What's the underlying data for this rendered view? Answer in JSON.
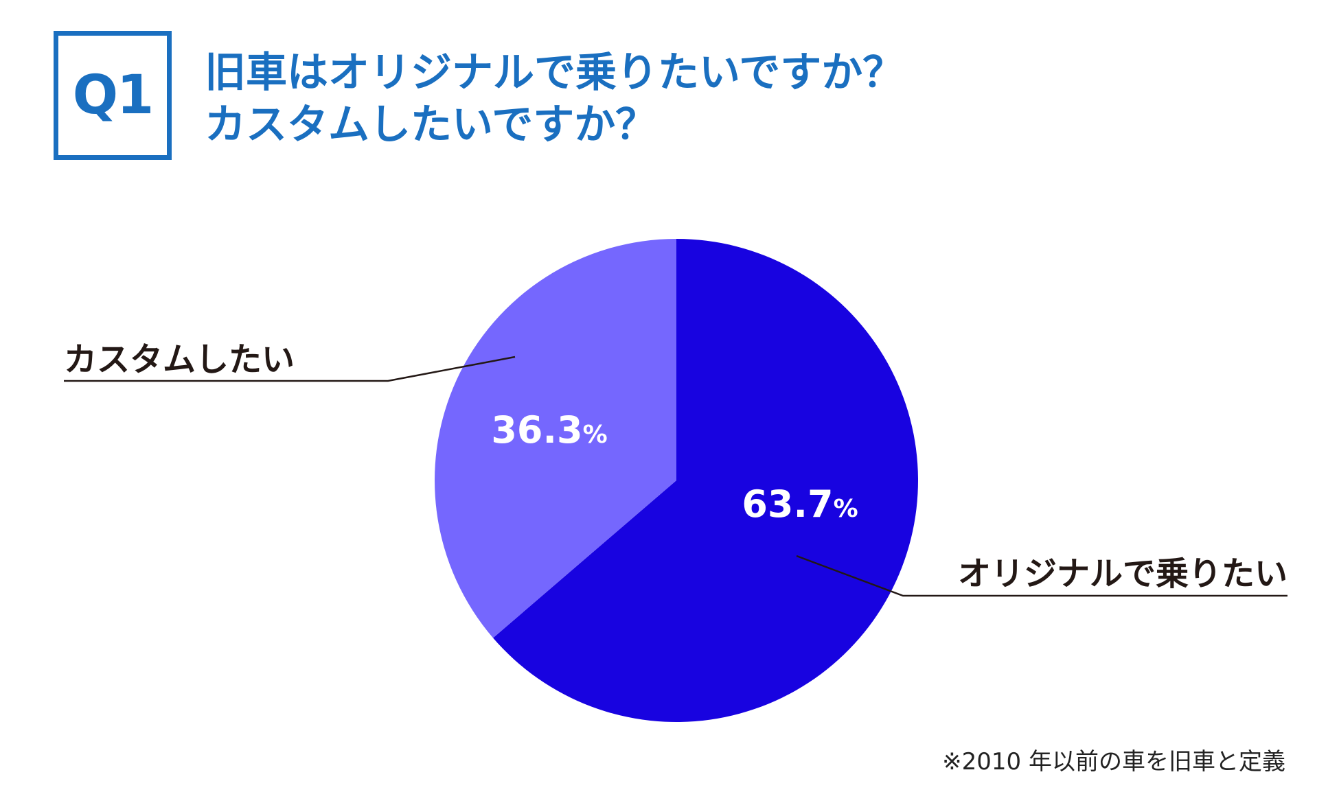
{
  "header": {
    "question_label": "Q1",
    "title_line1": "旧車はオリジナルで乗りたいですか？",
    "title_line2": "カスタムしたいですか？"
  },
  "colors": {
    "accent": "#1a6fc0",
    "series_original": "#1803e0",
    "series_custom": "#7567fe",
    "text_dark": "#231815"
  },
  "chart_data": {
    "type": "pie",
    "slices": [
      {
        "label": "オリジナルで乗りたい",
        "value": 63.7,
        "display": "63.7",
        "unit": "%",
        "color": "#1803e0"
      },
      {
        "label": "カスタムしたい",
        "value": 36.3,
        "display": "36.3",
        "unit": "%",
        "color": "#7567fe"
      }
    ],
    "start": "12 o'clock",
    "direction": "clockwise"
  },
  "footnote": "※2010 年以前の車を旧車と定義"
}
